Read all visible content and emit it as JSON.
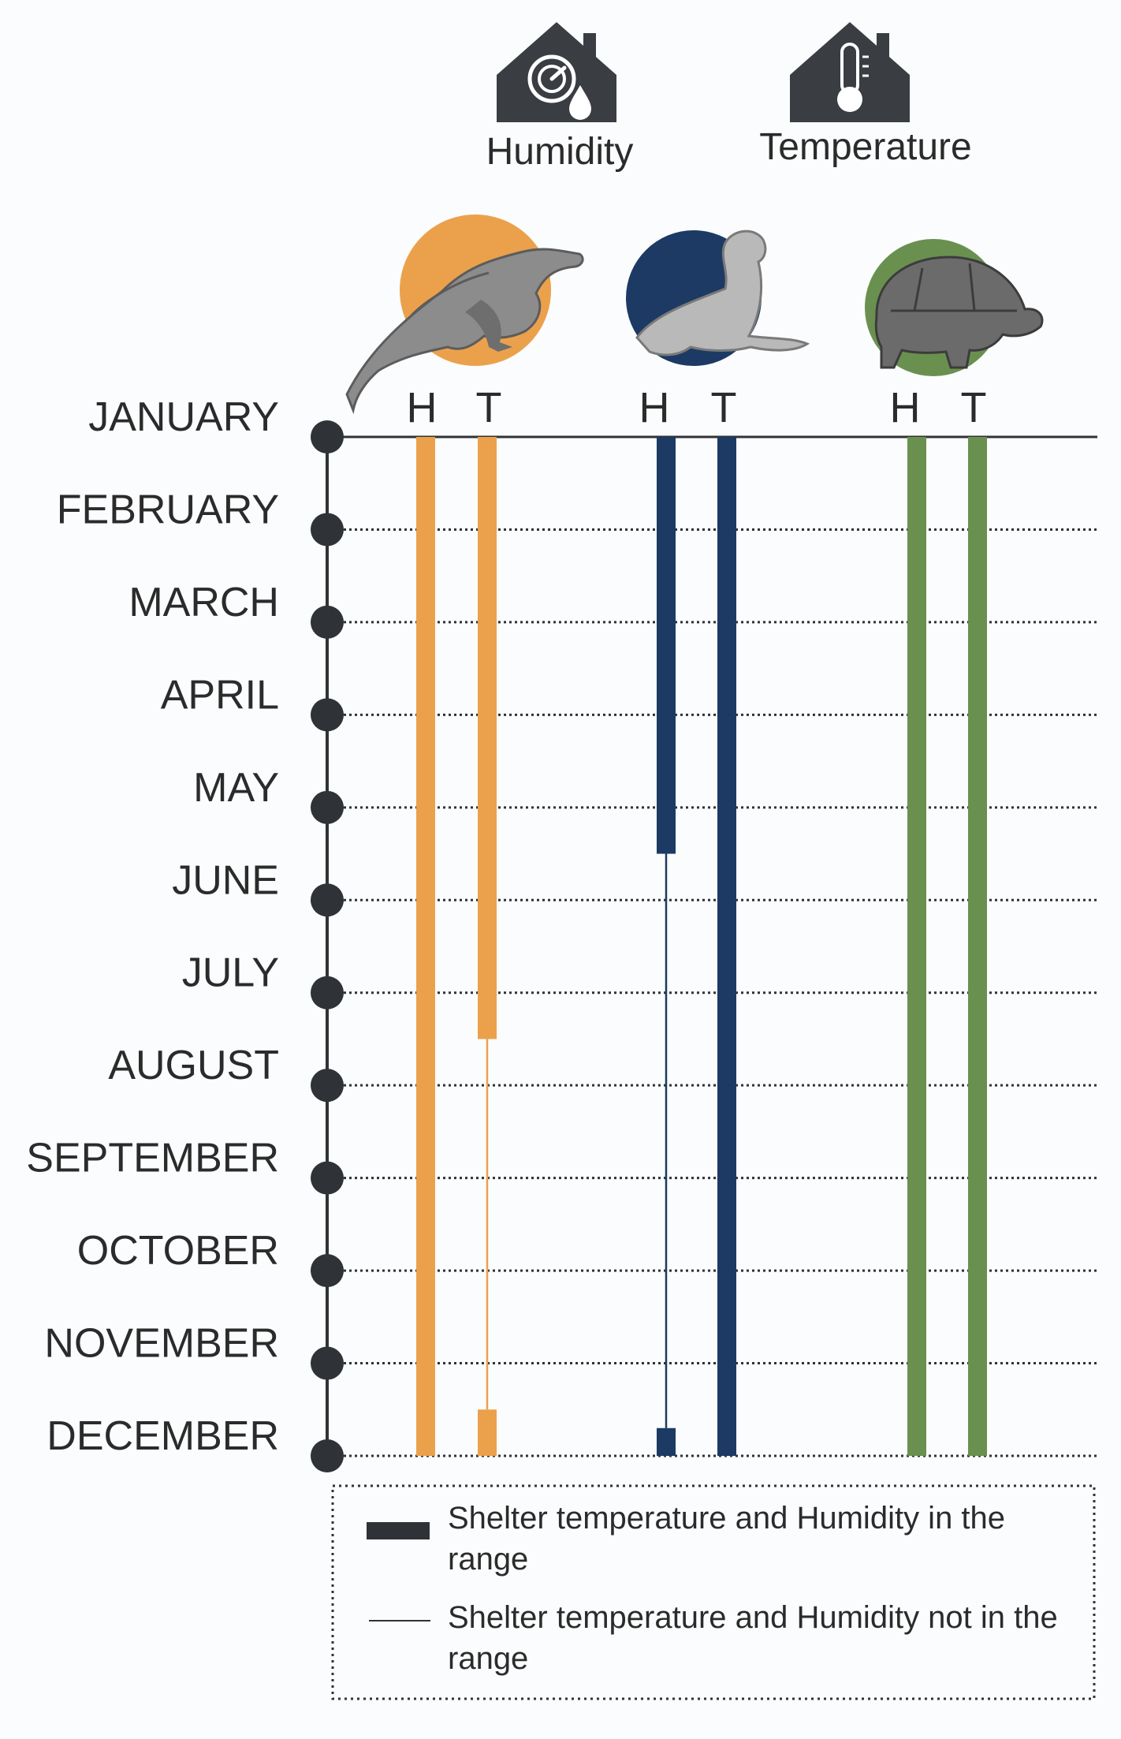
{
  "header": {
    "humidity_icon": "house-humidity-gauge-icon",
    "humidity_label": "Humidity",
    "temperature_icon": "house-thermometer-icon",
    "temperature_label": "Temperature"
  },
  "chart_data": {
    "type": "range-timeline",
    "months": [
      "JANUARY",
      "FEBRUARY",
      "MARCH",
      "APRIL",
      "MAY",
      "JUNE",
      "JULY",
      "AUGUST",
      "SEPTEMBER",
      "OCTOBER",
      "NOVEMBER",
      "DECEMBER"
    ],
    "column_labels": [
      "H",
      "T"
    ],
    "species": [
      {
        "icon": "iguana-icon",
        "color": "#eba14c",
        "H": {
          "in_range": [
            [
              1,
              12
            ]
          ],
          "not_in_range": []
        },
        "T": {
          "in_range": [
            [
              1,
              7.5
            ],
            [
              11.5,
              12
            ]
          ],
          "not_in_range": [
            [
              7.5,
              11.5
            ]
          ]
        }
      },
      {
        "icon": "sea-lion-icon",
        "color": "#1c3a63",
        "H": {
          "in_range": [
            [
              1,
              5.5
            ],
            [
              11.7,
              12
            ]
          ],
          "not_in_range": [
            [
              5.5,
              11.7
            ]
          ]
        },
        "T": {
          "in_range": [
            [
              1,
              12
            ]
          ],
          "not_in_range": []
        }
      },
      {
        "icon": "tortoise-icon",
        "color": "#6a9050",
        "H": {
          "in_range": [
            [
              1,
              12
            ]
          ],
          "not_in_range": []
        },
        "T": {
          "in_range": [
            [
              1,
              12
            ]
          ],
          "not_in_range": []
        }
      }
    ],
    "legend": [
      {
        "style": "thick",
        "color": "#2f3236",
        "label": "Shelter temperature and Humidity in the range"
      },
      {
        "style": "thin",
        "color": "#2f3236",
        "label": "Shelter temperature and Humidity not in the range"
      }
    ]
  }
}
